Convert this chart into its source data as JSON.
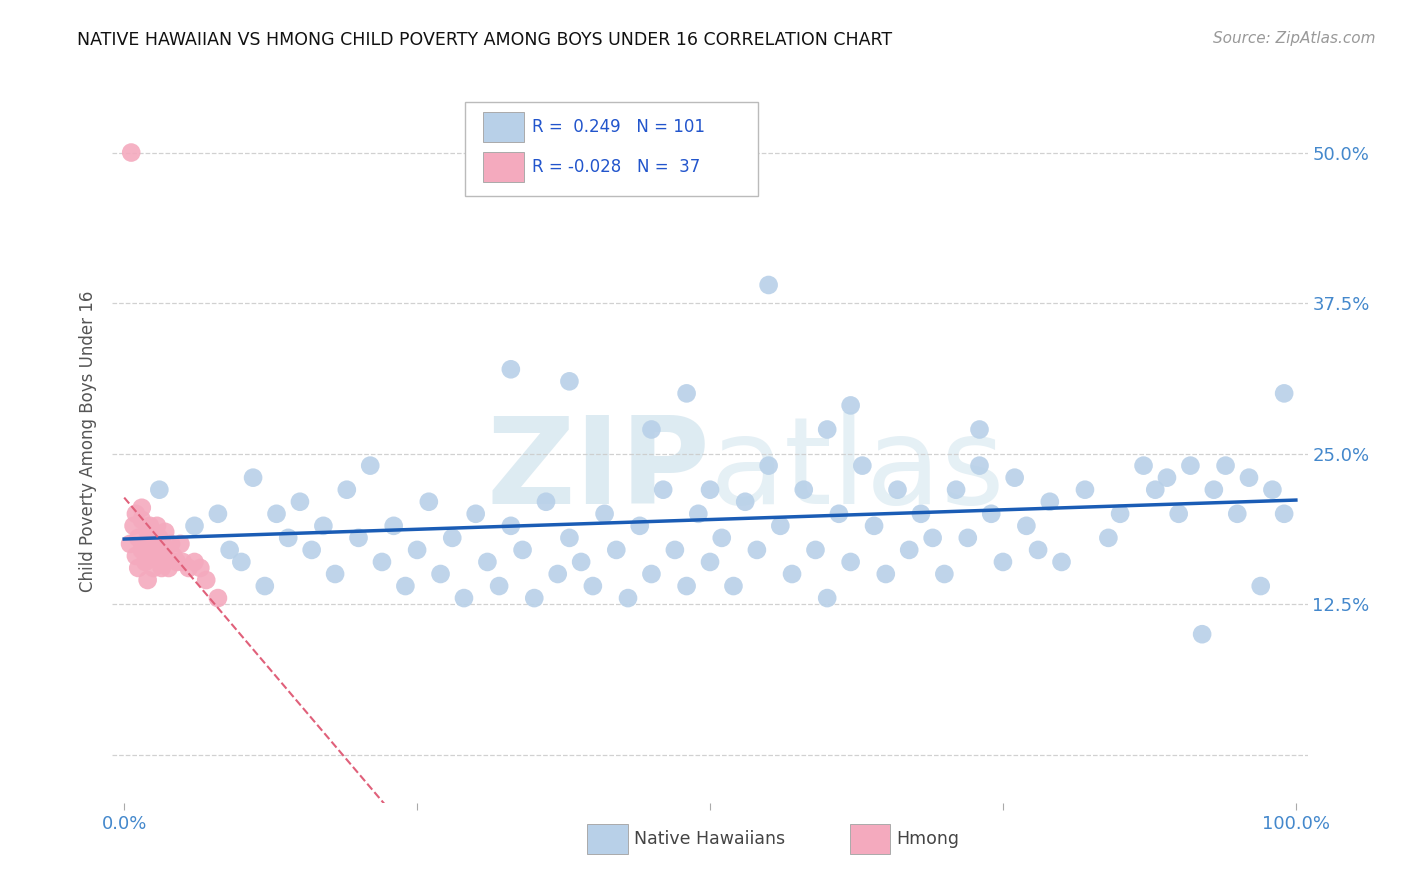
{
  "title": "NATIVE HAWAIIAN VS HMONG CHILD POVERTY AMONG BOYS UNDER 16 CORRELATION CHART",
  "source": "Source: ZipAtlas.com",
  "ylabel": "Child Poverty Among Boys Under 16",
  "watermark": "ZIPatlas",
  "r_nh": 0.249,
  "n_nh": 101,
  "r_hmong": -0.028,
  "n_hmong": 37,
  "xlim": [
    -0.01,
    1.01
  ],
  "ylim": [
    -0.04,
    0.56
  ],
  "xtick_pos": [
    0.0,
    0.25,
    0.5,
    0.75,
    1.0
  ],
  "xtick_labels": [
    "0.0%",
    "",
    "",
    "",
    "100.0%"
  ],
  "ytick_pos": [
    0.0,
    0.125,
    0.25,
    0.375,
    0.5
  ],
  "ytick_labels": [
    "",
    "12.5%",
    "25.0%",
    "37.5%",
    "50.0%"
  ],
  "grid_color": "#cccccc",
  "bg_color": "#ffffff",
  "nh_color": "#b8d0e8",
  "hmong_color": "#f4aabe",
  "nh_line_color": "#1a5cb5",
  "hmong_line_color": "#e0607a",
  "title_color": "#111111",
  "tick_color": "#4488cc",
  "legend_color": "#2255cc",
  "nh_x": [
    0.03,
    0.06,
    0.08,
    0.09,
    0.1,
    0.11,
    0.12,
    0.13,
    0.14,
    0.15,
    0.16,
    0.17,
    0.18,
    0.19,
    0.2,
    0.21,
    0.22,
    0.23,
    0.24,
    0.25,
    0.26,
    0.27,
    0.28,
    0.29,
    0.3,
    0.31,
    0.32,
    0.33,
    0.34,
    0.35,
    0.36,
    0.37,
    0.38,
    0.39,
    0.4,
    0.41,
    0.42,
    0.43,
    0.44,
    0.45,
    0.46,
    0.47,
    0.48,
    0.49,
    0.5,
    0.5,
    0.51,
    0.52,
    0.53,
    0.54,
    0.55,
    0.56,
    0.57,
    0.58,
    0.59,
    0.6,
    0.61,
    0.62,
    0.63,
    0.64,
    0.65,
    0.66,
    0.67,
    0.68,
    0.69,
    0.7,
    0.71,
    0.72,
    0.73,
    0.74,
    0.75,
    0.76,
    0.77,
    0.78,
    0.79,
    0.8,
    0.82,
    0.84,
    0.85,
    0.87,
    0.88,
    0.89,
    0.9,
    0.91,
    0.92,
    0.93,
    0.94,
    0.95,
    0.96,
    0.97,
    0.98,
    0.99,
    0.99,
    0.55,
    0.33,
    0.45,
    0.48,
    0.6,
    0.62,
    0.73,
    0.38
  ],
  "nh_y": [
    0.22,
    0.19,
    0.2,
    0.17,
    0.16,
    0.23,
    0.14,
    0.2,
    0.18,
    0.21,
    0.17,
    0.19,
    0.15,
    0.22,
    0.18,
    0.24,
    0.16,
    0.19,
    0.14,
    0.17,
    0.21,
    0.15,
    0.18,
    0.13,
    0.2,
    0.16,
    0.14,
    0.19,
    0.17,
    0.13,
    0.21,
    0.15,
    0.18,
    0.16,
    0.14,
    0.2,
    0.17,
    0.13,
    0.19,
    0.15,
    0.22,
    0.17,
    0.14,
    0.2,
    0.16,
    0.22,
    0.18,
    0.14,
    0.21,
    0.17,
    0.24,
    0.19,
    0.15,
    0.22,
    0.17,
    0.13,
    0.2,
    0.16,
    0.24,
    0.19,
    0.15,
    0.22,
    0.17,
    0.2,
    0.18,
    0.15,
    0.22,
    0.18,
    0.24,
    0.2,
    0.16,
    0.23,
    0.19,
    0.17,
    0.21,
    0.16,
    0.22,
    0.18,
    0.2,
    0.24,
    0.22,
    0.23,
    0.2,
    0.24,
    0.1,
    0.22,
    0.24,
    0.2,
    0.23,
    0.14,
    0.22,
    0.2,
    0.3,
    0.39,
    0.32,
    0.27,
    0.3,
    0.27,
    0.29,
    0.27,
    0.31
  ],
  "hmong_x": [
    0.005,
    0.008,
    0.01,
    0.01,
    0.012,
    0.012,
    0.015,
    0.015,
    0.015,
    0.018,
    0.02,
    0.02,
    0.02,
    0.022,
    0.022,
    0.025,
    0.025,
    0.028,
    0.028,
    0.03,
    0.03,
    0.032,
    0.033,
    0.035,
    0.035,
    0.038,
    0.04,
    0.042,
    0.045,
    0.048,
    0.05,
    0.055,
    0.06,
    0.065,
    0.07,
    0.08,
    0.006
  ],
  "hmong_y": [
    0.175,
    0.19,
    0.165,
    0.2,
    0.18,
    0.155,
    0.195,
    0.17,
    0.205,
    0.16,
    0.185,
    0.175,
    0.145,
    0.19,
    0.165,
    0.18,
    0.155,
    0.17,
    0.19,
    0.165,
    0.18,
    0.155,
    0.175,
    0.165,
    0.185,
    0.155,
    0.175,
    0.165,
    0.16,
    0.175,
    0.16,
    0.155,
    0.16,
    0.155,
    0.145,
    0.13,
    0.5
  ]
}
